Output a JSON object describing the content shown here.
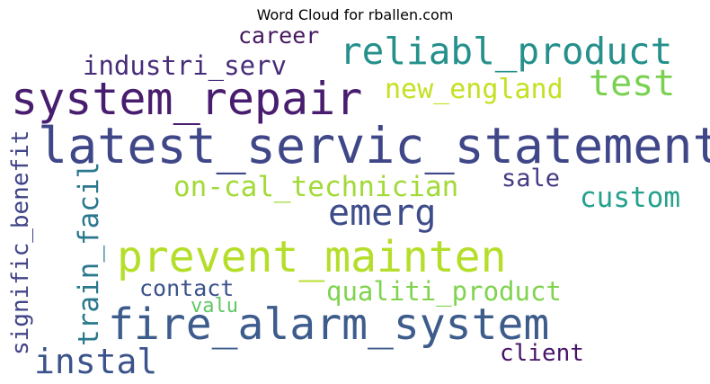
{
  "title": "Word Cloud for rballen.com",
  "palette": "viridis",
  "words": [
    {
      "text": "latest_servic_statement",
      "color": "#3f4788"
    },
    {
      "text": "system_repair",
      "color": "#481c6e"
    },
    {
      "text": "fire_alarm_system",
      "color": "#3d5c8c"
    },
    {
      "text": "prevent_mainten",
      "color": "#b5de2b"
    },
    {
      "text": "reliabl_product",
      "color": "#25908c"
    },
    {
      "text": "emerg",
      "color": "#3e4c8a"
    },
    {
      "text": "test",
      "color": "#7ad151"
    },
    {
      "text": "new_england",
      "color": "#c5e021"
    },
    {
      "text": "industri_serv",
      "color": "#472c7a"
    },
    {
      "text": "career",
      "color": "#46185f"
    },
    {
      "text": "on-cal_technician",
      "color": "#a2da37"
    },
    {
      "text": "sale",
      "color": "#443983"
    },
    {
      "text": "custom",
      "color": "#25a18e"
    },
    {
      "text": "qualiti_product",
      "color": "#7fd34e"
    },
    {
      "text": "contact",
      "color": "#3b528b"
    },
    {
      "text": "valu",
      "color": "#5ec962"
    },
    {
      "text": "instal",
      "color": "#3b538b"
    },
    {
      "text": "client",
      "color": "#481467"
    },
    {
      "text": "signific_benefit",
      "color": "#414487"
    },
    {
      "text": "train_facil",
      "color": "#2a788e"
    }
  ]
}
